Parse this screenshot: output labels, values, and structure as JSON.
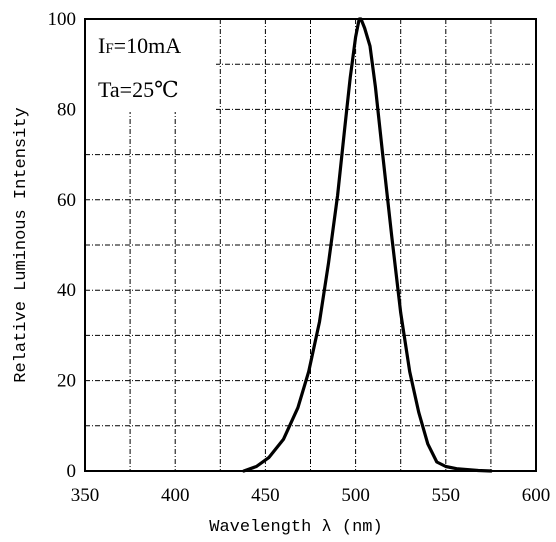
{
  "chart_data": {
    "type": "line",
    "title": "",
    "xlabel": "Wavelength λ (nm)",
    "ylabel": "Relative Luminous Intensity",
    "xlim": [
      350,
      600
    ],
    "ylim": [
      0,
      100
    ],
    "x_ticks": [
      "350",
      "400",
      "450",
      "500",
      "550",
      "600"
    ],
    "y_ticks": [
      "0",
      "20",
      "40",
      "60",
      "80",
      "100"
    ],
    "grid": true,
    "annotations": [
      "IF=10mA",
      "Ta=25℃"
    ],
    "series": [
      {
        "x": [
          438,
          445,
          452,
          460,
          468,
          474,
          480,
          485,
          490,
          494,
          497,
          500,
          502,
          503,
          505,
          508,
          511,
          515,
          520,
          525,
          530,
          535,
          540,
          545,
          550,
          556,
          562,
          568,
          575
        ],
        "y": [
          0,
          1,
          3,
          7,
          14,
          22,
          33,
          46,
          61,
          76,
          87,
          96,
          100,
          100,
          98,
          94,
          85,
          70,
          52,
          35,
          22,
          13,
          6,
          2,
          1,
          0.5,
          0.3,
          0.1,
          0
        ]
      }
    ]
  }
}
